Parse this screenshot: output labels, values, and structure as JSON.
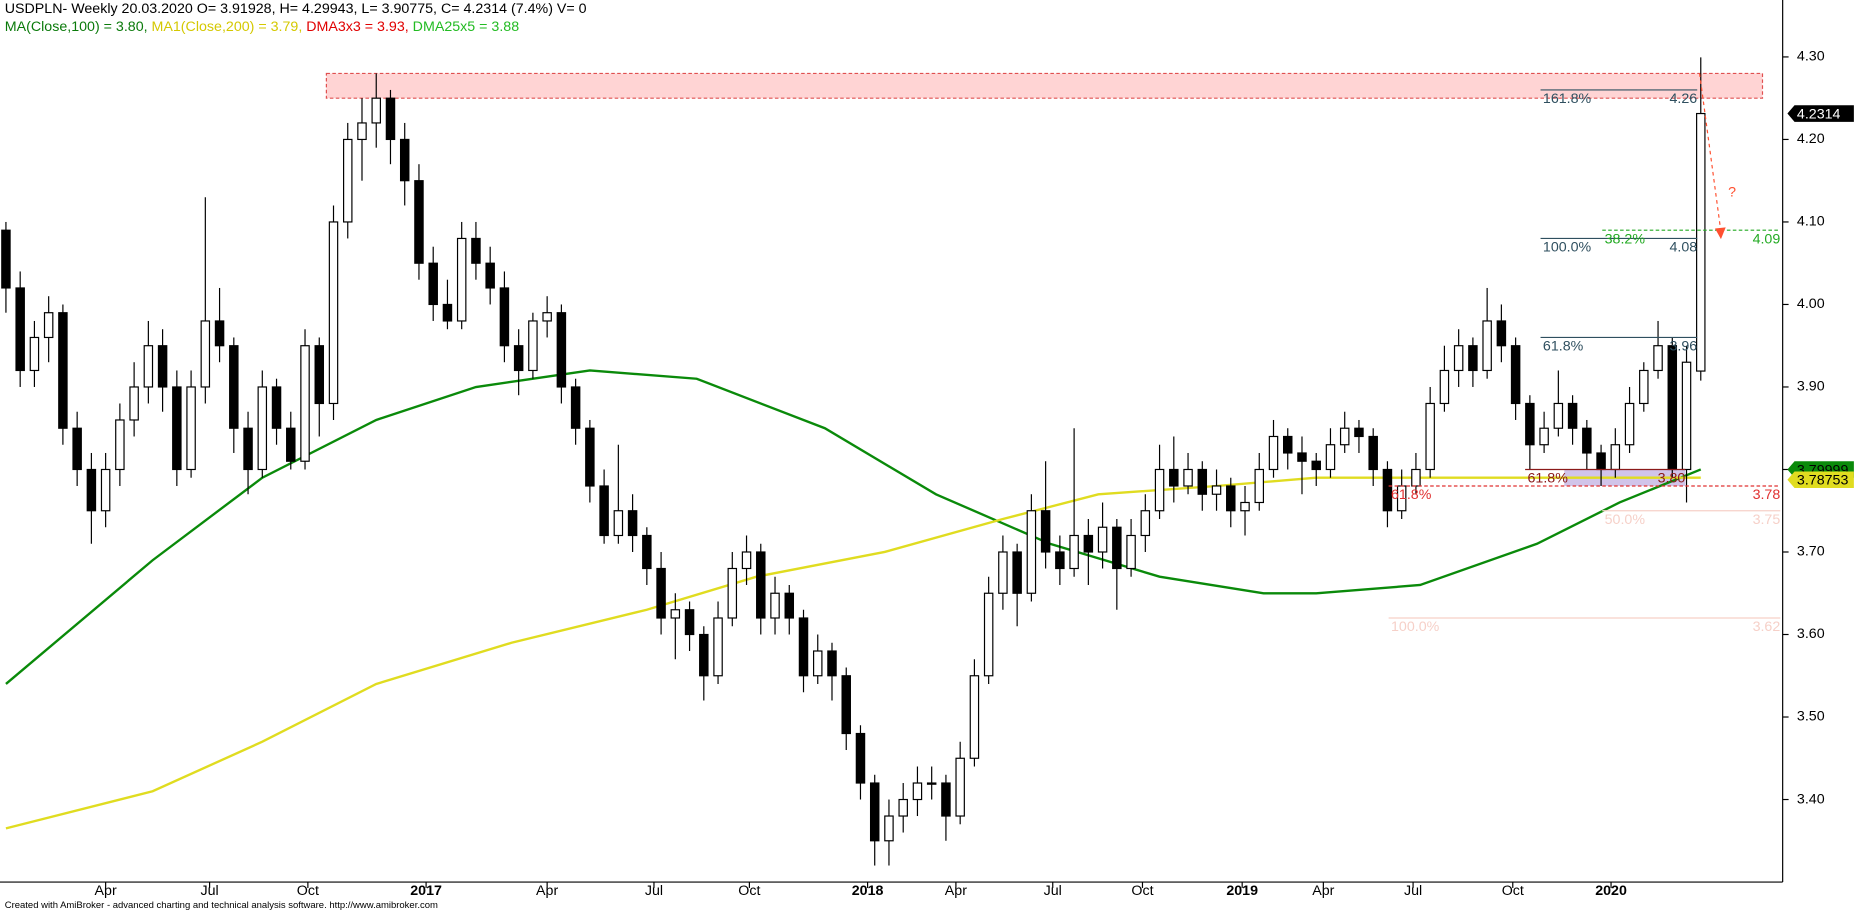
{
  "chart_data": {
    "type": "candlestick",
    "header": "USDPLN- Weekly 20.03.2020 O= 3.91928, H= 4.29943, L= 3.90775, C= 4.2314 (7.4%) V= 0",
    "indicators": [
      {
        "text": "MA(Close,100) = 3.80, ",
        "color": "#0a7a0a"
      },
      {
        "text": "MA1(Close,200) = 3.79, ",
        "color": "#d4c800"
      },
      {
        "text": "DMA3x3 = 3.93, ",
        "color": "#e00000"
      },
      {
        "text": "DMA25x5 = 3.88",
        "color": "#22bb22"
      }
    ],
    "footer": "Created with AmiBroker - advanced charting and technical analysis software. http://www.amibroker.com",
    "up_color": "#ffffff",
    "down_color": "#000000",
    "ohlc": [
      [
        4.09,
        4.1,
        3.99,
        4.02
      ],
      [
        4.02,
        4.04,
        3.9,
        3.92
      ],
      [
        3.92,
        3.98,
        3.9,
        3.96
      ],
      [
        3.96,
        4.01,
        3.93,
        3.99
      ],
      [
        3.99,
        4.0,
        3.83,
        3.85
      ],
      [
        3.85,
        3.87,
        3.78,
        3.8
      ],
      [
        3.8,
        3.82,
        3.71,
        3.75
      ],
      [
        3.75,
        3.82,
        3.73,
        3.8
      ],
      [
        3.8,
        3.88,
        3.78,
        3.86
      ],
      [
        3.86,
        3.93,
        3.84,
        3.9
      ],
      [
        3.9,
        3.98,
        3.88,
        3.95
      ],
      [
        3.95,
        3.97,
        3.87,
        3.9
      ],
      [
        3.9,
        3.92,
        3.78,
        3.8
      ],
      [
        3.8,
        3.92,
        3.79,
        3.9
      ],
      [
        3.9,
        4.13,
        3.88,
        3.98
      ],
      [
        3.98,
        4.02,
        3.93,
        3.95
      ],
      [
        3.95,
        3.96,
        3.82,
        3.85
      ],
      [
        3.85,
        3.87,
        3.77,
        3.8
      ],
      [
        3.8,
        3.92,
        3.79,
        3.9
      ],
      [
        3.9,
        3.91,
        3.83,
        3.85
      ],
      [
        3.85,
        3.87,
        3.8,
        3.81
      ],
      [
        3.81,
        3.97,
        3.8,
        3.95
      ],
      [
        3.95,
        3.96,
        3.84,
        3.88
      ],
      [
        3.88,
        4.12,
        3.86,
        4.1
      ],
      [
        4.1,
        4.22,
        4.08,
        4.2
      ],
      [
        4.2,
        4.25,
        4.15,
        4.22
      ],
      [
        4.22,
        4.28,
        4.19,
        4.25
      ],
      [
        4.25,
        4.26,
        4.17,
        4.2
      ],
      [
        4.2,
        4.22,
        4.12,
        4.15
      ],
      [
        4.15,
        4.17,
        4.03,
        4.05
      ],
      [
        4.05,
        4.07,
        3.98,
        4.0
      ],
      [
        4.0,
        4.03,
        3.97,
        3.98
      ],
      [
        3.98,
        4.1,
        3.97,
        4.08
      ],
      [
        4.08,
        4.1,
        4.03,
        4.05
      ],
      [
        4.05,
        4.07,
        4.0,
        4.02
      ],
      [
        4.02,
        4.04,
        3.93,
        3.95
      ],
      [
        3.95,
        3.97,
        3.89,
        3.92
      ],
      [
        3.92,
        3.99,
        3.91,
        3.98
      ],
      [
        3.98,
        4.01,
        3.96,
        3.99
      ],
      [
        3.99,
        4.0,
        3.88,
        3.9
      ],
      [
        3.9,
        3.91,
        3.83,
        3.85
      ],
      [
        3.85,
        3.86,
        3.76,
        3.78
      ],
      [
        3.78,
        3.8,
        3.71,
        3.72
      ],
      [
        3.72,
        3.83,
        3.71,
        3.75
      ],
      [
        3.75,
        3.77,
        3.7,
        3.72
      ],
      [
        3.72,
        3.73,
        3.66,
        3.68
      ],
      [
        3.68,
        3.7,
        3.6,
        3.62
      ],
      [
        3.62,
        3.65,
        3.57,
        3.63
      ],
      [
        3.63,
        3.64,
        3.58,
        3.6
      ],
      [
        3.6,
        3.61,
        3.52,
        3.55
      ],
      [
        3.55,
        3.64,
        3.54,
        3.62
      ],
      [
        3.62,
        3.7,
        3.61,
        3.68
      ],
      [
        3.68,
        3.72,
        3.66,
        3.7
      ],
      [
        3.7,
        3.71,
        3.6,
        3.62
      ],
      [
        3.62,
        3.67,
        3.6,
        3.65
      ],
      [
        3.65,
        3.66,
        3.6,
        3.62
      ],
      [
        3.62,
        3.63,
        3.53,
        3.55
      ],
      [
        3.55,
        3.6,
        3.54,
        3.58
      ],
      [
        3.58,
        3.59,
        3.52,
        3.55
      ],
      [
        3.55,
        3.56,
        3.46,
        3.48
      ],
      [
        3.48,
        3.49,
        3.4,
        3.42
      ],
      [
        3.42,
        3.43,
        3.32,
        3.35
      ],
      [
        3.35,
        3.4,
        3.32,
        3.38
      ],
      [
        3.38,
        3.42,
        3.36,
        3.4
      ],
      [
        3.4,
        3.44,
        3.38,
        3.42
      ],
      [
        3.42,
        3.44,
        3.4,
        3.42
      ],
      [
        3.42,
        3.43,
        3.35,
        3.38
      ],
      [
        3.38,
        3.47,
        3.37,
        3.45
      ],
      [
        3.45,
        3.57,
        3.44,
        3.55
      ],
      [
        3.55,
        3.67,
        3.54,
        3.65
      ],
      [
        3.65,
        3.72,
        3.63,
        3.7
      ],
      [
        3.7,
        3.71,
        3.61,
        3.65
      ],
      [
        3.65,
        3.77,
        3.64,
        3.75
      ],
      [
        3.75,
        3.81,
        3.68,
        3.7
      ],
      [
        3.7,
        3.72,
        3.66,
        3.68
      ],
      [
        3.68,
        3.85,
        3.67,
        3.72
      ],
      [
        3.72,
        3.74,
        3.66,
        3.7
      ],
      [
        3.7,
        3.76,
        3.68,
        3.73
      ],
      [
        3.73,
        3.74,
        3.63,
        3.68
      ],
      [
        3.68,
        3.74,
        3.67,
        3.72
      ],
      [
        3.72,
        3.77,
        3.7,
        3.75
      ],
      [
        3.75,
        3.83,
        3.74,
        3.8
      ],
      [
        3.8,
        3.84,
        3.76,
        3.78
      ],
      [
        3.78,
        3.82,
        3.77,
        3.8
      ],
      [
        3.8,
        3.81,
        3.75,
        3.77
      ],
      [
        3.77,
        3.8,
        3.75,
        3.78
      ],
      [
        3.78,
        3.79,
        3.73,
        3.75
      ],
      [
        3.75,
        3.78,
        3.72,
        3.76
      ],
      [
        3.76,
        3.82,
        3.75,
        3.8
      ],
      [
        3.8,
        3.86,
        3.79,
        3.84
      ],
      [
        3.84,
        3.85,
        3.8,
        3.82
      ],
      [
        3.82,
        3.84,
        3.77,
        3.81
      ],
      [
        3.81,
        3.82,
        3.78,
        3.8
      ],
      [
        3.8,
        3.85,
        3.79,
        3.83
      ],
      [
        3.83,
        3.87,
        3.82,
        3.85
      ],
      [
        3.85,
        3.86,
        3.82,
        3.84
      ],
      [
        3.84,
        3.85,
        3.78,
        3.8
      ],
      [
        3.8,
        3.81,
        3.73,
        3.75
      ],
      [
        3.75,
        3.8,
        3.74,
        3.78
      ],
      [
        3.78,
        3.82,
        3.77,
        3.8
      ],
      [
        3.8,
        3.9,
        3.79,
        3.88
      ],
      [
        3.88,
        3.95,
        3.87,
        3.92
      ],
      [
        3.92,
        3.97,
        3.9,
        3.95
      ],
      [
        3.95,
        3.96,
        3.9,
        3.92
      ],
      [
        3.92,
        4.02,
        3.91,
        3.98
      ],
      [
        3.98,
        4.0,
        3.93,
        3.95
      ],
      [
        3.95,
        3.96,
        3.86,
        3.88
      ],
      [
        3.88,
        3.89,
        3.8,
        3.83
      ],
      [
        3.83,
        3.87,
        3.82,
        3.85
      ],
      [
        3.85,
        3.92,
        3.84,
        3.88
      ],
      [
        3.88,
        3.89,
        3.83,
        3.85
      ],
      [
        3.85,
        3.86,
        3.8,
        3.82
      ],
      [
        3.82,
        3.83,
        3.78,
        3.8
      ],
      [
        3.8,
        3.85,
        3.79,
        3.83
      ],
      [
        3.83,
        3.9,
        3.82,
        3.88
      ],
      [
        3.88,
        3.93,
        3.87,
        3.92
      ],
      [
        3.92,
        3.98,
        3.91,
        3.95
      ],
      [
        3.95,
        3.96,
        3.79,
        3.8
      ],
      [
        3.8,
        3.95,
        3.76,
        3.93
      ],
      [
        3.91928,
        4.29943,
        3.90775,
        4.2314
      ]
    ],
    "series": [
      {
        "name": "MA(Close,100)",
        "color": "#0a8a0a",
        "x": [
          0,
          10.3,
          18,
          26,
          33,
          41,
          48.5,
          57.5,
          65.3,
          73.3,
          81,
          88.3,
          92,
          99.3,
          107.5,
          113.3,
          119
        ],
        "values": [
          3.54,
          3.69,
          3.79,
          3.86,
          3.9,
          3.92,
          3.91,
          3.85,
          3.77,
          3.71,
          3.67,
          3.65,
          3.65,
          3.66,
          3.71,
          3.76,
          3.8
        ]
      },
      {
        "name": "MA1(Close,200)",
        "color": "#e0dc20",
        "x": [
          0,
          10.3,
          18,
          26,
          35.5,
          45,
          52.7,
          61.7,
          70,
          76.7,
          85,
          92,
          99.3,
          107.5,
          119
        ],
        "values": [
          3.365,
          3.41,
          3.47,
          3.54,
          3.59,
          3.63,
          3.67,
          3.7,
          3.74,
          3.77,
          3.78,
          3.79,
          3.79,
          3.79,
          3.79
        ]
      }
    ],
    "ylim": [
      3.3,
      4.369
    ],
    "yticks": [
      {
        "value": 3.4,
        "label": "3.40"
      },
      {
        "value": 3.5,
        "label": "3.50"
      },
      {
        "value": 3.6,
        "label": "3.60"
      },
      {
        "value": 3.7,
        "label": "3.70"
      },
      {
        "value": 3.8,
        "label": "3.80"
      },
      {
        "value": 3.9,
        "label": "3.90"
      },
      {
        "value": 4.0,
        "label": "4.00"
      },
      {
        "value": 4.1,
        "label": "4.10"
      },
      {
        "value": 4.2,
        "label": "4.20"
      },
      {
        "value": 4.3,
        "label": "4.30"
      }
    ],
    "xticks": [
      {
        "value": 7,
        "label": "Apr"
      },
      {
        "value": 14.3,
        "label": "Jul"
      },
      {
        "value": 21.2,
        "label": "Oct"
      },
      {
        "value": 29.5,
        "label": "2017"
      },
      {
        "value": 38,
        "label": "Apr"
      },
      {
        "value": 45.5,
        "label": "Jul"
      },
      {
        "value": 52.2,
        "label": "Oct"
      },
      {
        "value": 60.5,
        "label": "2018"
      },
      {
        "value": 66.7,
        "label": "Apr"
      },
      {
        "value": 73.5,
        "label": "Jul"
      },
      {
        "value": 79.8,
        "label": "Oct"
      },
      {
        "value": 86.8,
        "label": "2019"
      },
      {
        "value": 92.5,
        "label": "Apr"
      },
      {
        "value": 98.8,
        "label": "Jul"
      },
      {
        "value": 105.8,
        "label": "Oct"
      },
      {
        "value": 112.7,
        "label": "2020"
      }
    ],
    "fib_levels": [
      {
        "pct": "161.8%",
        "level": 4.26,
        "label": "4.26",
        "color": "#2f4f5f"
      },
      {
        "pct": "100.0%",
        "level": 4.08,
        "label": "4.08",
        "color": "#2f4f5f"
      },
      {
        "pct": "61.8%",
        "level": 3.96,
        "label": "3.96",
        "color": "#2f4f5f"
      },
      {
        "pct": "38.2%",
        "level": 4.09,
        "label": "4.09",
        "color": "#22aa22"
      },
      {
        "pct": "61.8%",
        "level": 3.8,
        "label": "3.80",
        "color": "#8b1a1a"
      },
      {
        "pct": "61.8%",
        "level": 3.78,
        "label": "3.78",
        "color": "#e03030"
      },
      {
        "pct": "50.0%",
        "level": 3.75,
        "label": "3.75",
        "color": "#f6d0c8"
      },
      {
        "pct": "100.0%",
        "level": 3.62,
        "label": "3.62",
        "color": "#f6d0c8"
      }
    ],
    "zones": [
      {
        "low": 4.25,
        "high": 4.28,
        "color": "#ffb8b8"
      },
      {
        "low": 3.78,
        "high": 3.8,
        "color": "#b39ddb"
      }
    ],
    "price_tags": [
      {
        "value": 4.2314,
        "label": "4.2314",
        "color": "#000000",
        "text_color": "#ffffff"
      },
      {
        "value": 3.79999,
        "label": "3.79999",
        "color": "#0a8a0a",
        "text_color": "#000000"
      },
      {
        "value": 3.78753,
        "label": "3.78753",
        "color": "#e0dc20",
        "text_color": "#000000"
      }
    ],
    "question": "?"
  }
}
